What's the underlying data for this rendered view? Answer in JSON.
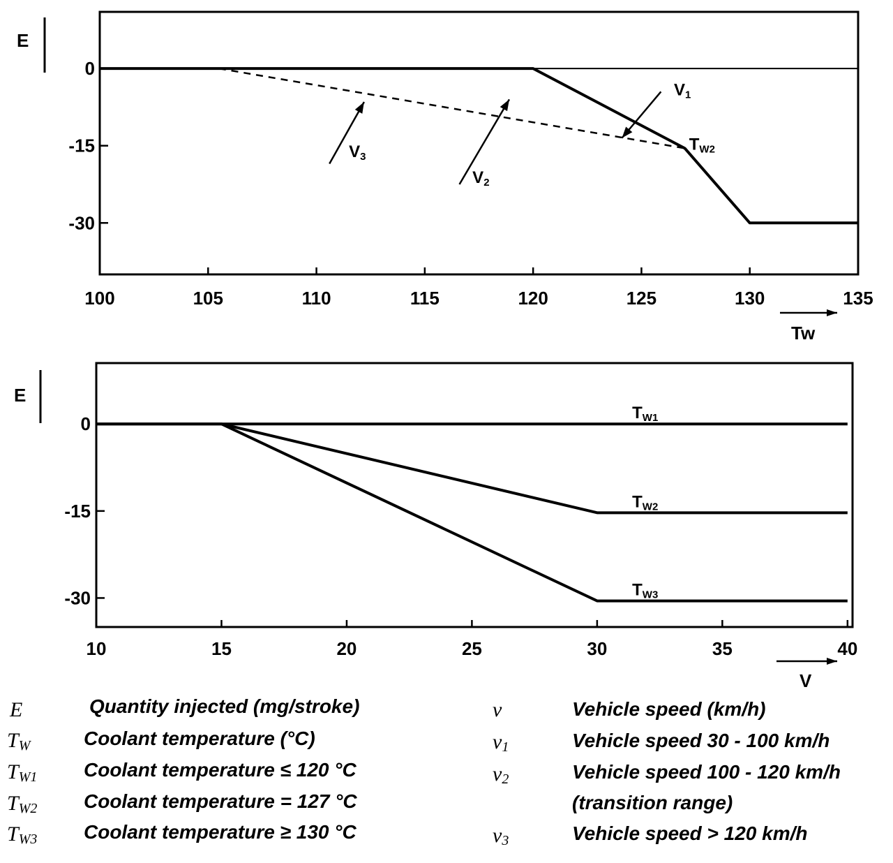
{
  "chart_data": [
    {
      "type": "line",
      "ylabel": "E",
      "xlabel": "Tw",
      "xlim": [
        100,
        135
      ],
      "ylim": [
        -40,
        11
      ],
      "x_ticks": [
        "100",
        "105",
        "110",
        "115",
        "120",
        "125",
        "130",
        "135"
      ],
      "y_ticks": [
        "0",
        "-15",
        "-30"
      ],
      "zero_line": true,
      "series": [
        {
          "style": "solid",
          "points": [
            [
              100,
              0
            ],
            [
              120,
              0
            ],
            [
              127,
              -15.5
            ],
            [
              130,
              -30
            ],
            [
              135,
              -30
            ]
          ]
        },
        {
          "style": "dashed",
          "points": [
            [
              105.5,
              0
            ],
            [
              127,
              -15.5
            ]
          ]
        }
      ],
      "labels": [
        {
          "text": "V",
          "sub": "1",
          "x": 126.5,
          "y": -4
        },
        {
          "text": "V",
          "sub": "3",
          "x": 111.5,
          "y": -16
        },
        {
          "text": "V",
          "sub": "2",
          "x": 117.2,
          "y": -21
        },
        {
          "text": "T",
          "sub": "W2",
          "x": 127.2,
          "y": -14.6
        }
      ],
      "arrows": [
        {
          "from": [
            125.9,
            -4.5
          ],
          "to": [
            124.1,
            -13.5
          ]
        },
        {
          "from": [
            110.6,
            -18.5
          ],
          "to": [
            112.2,
            -6.5
          ]
        },
        {
          "from": [
            116.6,
            -22.5
          ],
          "to": [
            118.9,
            -6
          ]
        }
      ]
    },
    {
      "type": "line",
      "ylabel": "E",
      "xlabel": "V",
      "xlim": [
        10,
        40.2
      ],
      "ylim": [
        -35,
        10.5
      ],
      "x_ticks": [
        "10",
        "15",
        "20",
        "25",
        "30",
        "35",
        "40"
      ],
      "y_ticks": [
        "0",
        "-15",
        "-30"
      ],
      "series": [
        {
          "name": "Tw1",
          "label": {
            "text": "T",
            "sub": "W1"
          },
          "points": [
            [
              10,
              0
            ],
            [
              40,
              0
            ]
          ]
        },
        {
          "name": "Tw2",
          "label": {
            "text": "T",
            "sub": "W2"
          },
          "points": [
            [
              10,
              0
            ],
            [
              15,
              0
            ],
            [
              30,
              -15.3
            ],
            [
              40,
              -15.3
            ]
          ]
        },
        {
          "name": "Tw3",
          "label": {
            "text": "T",
            "sub": "W3"
          },
          "points": [
            [
              15,
              0
            ],
            [
              30,
              -30.5
            ],
            [
              40,
              -30.5
            ]
          ]
        }
      ]
    }
  ],
  "legend": {
    "left": [
      {
        "sym": "E",
        "sub": "",
        "text": "Quantity injected (mg/stroke)"
      },
      {
        "sym": "T",
        "sub": "W",
        "text": "Coolant temperature (°C)"
      },
      {
        "sym": "T",
        "sub": "W1",
        "text": "Coolant temperature ≤ 120 °C"
      },
      {
        "sym": "T",
        "sub": "W2",
        "text": "Coolant temperature = 127 °C"
      },
      {
        "sym": "T",
        "sub": "W3",
        "text": "Coolant temperature ≥ 130 °C"
      }
    ],
    "right": [
      {
        "sym": "v",
        "sub": "",
        "text": "Vehicle speed (km/h)"
      },
      {
        "sym": "v",
        "sub": "1",
        "text": "Vehicle speed 30 - 100 km/h"
      },
      {
        "sym": "v",
        "sub": "2",
        "text": "Vehicle speed 100 - 120 km/h"
      },
      {
        "sym": "",
        "sub": "",
        "text": "(transition range)"
      },
      {
        "sym": "v",
        "sub": "3",
        "text": "Vehicle speed > 120 km/h"
      }
    ]
  }
}
